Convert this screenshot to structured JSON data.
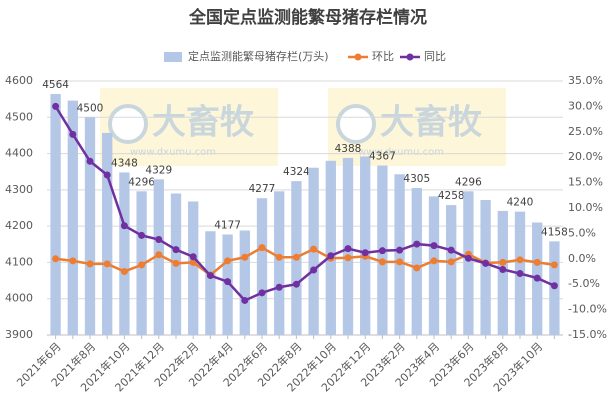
{
  "chart_data": {
    "type": "bar",
    "title": "全国定点监测能繁母猪存栏情况",
    "watermark": [
      "大畜牧",
      "www.dxumu.com"
    ],
    "categories": [
      "2021年6月",
      null,
      "2021年8月",
      null,
      "2021年10月",
      null,
      "2021年12月",
      null,
      "2022年2月",
      null,
      "2022年4月",
      null,
      "2022年6月",
      null,
      "2022年8月",
      null,
      "2022年10月",
      null,
      "2022年12月",
      null,
      "2023年2月",
      null,
      "2023年4月",
      null,
      "2023年6月",
      null,
      "2023年8月",
      null,
      "2023年10月",
      null
    ],
    "series": [
      {
        "name": "定点监测能繁母猪存栏(万头)",
        "type": "bar",
        "color": "#b4c7e7",
        "values": [
          4564,
          4546,
          4500,
          4457,
          4348,
          4296,
          4329,
          4290,
          4268,
          4186,
          4177,
          4188,
          4277,
          4296,
          4324,
          4361,
          4380,
          4388,
          4392,
          4367,
          4343,
          4305,
          4282,
          4258,
          4296,
          4272,
          4242,
          4240,
          4210,
          4158
        ],
        "value_labels": [
          "4564",
          null,
          "4500",
          null,
          "4348",
          "4296",
          "4329",
          null,
          null,
          null,
          "4177",
          null,
          "4277",
          null,
          "4324",
          null,
          null,
          "4388",
          null,
          "4367",
          null,
          "4305",
          null,
          "4258",
          "4296",
          null,
          null,
          "4240",
          null,
          "4158"
        ]
      },
      {
        "name": "环比",
        "type": "line",
        "axis": "y2",
        "color": "#ed7d31",
        "values": [
          0.0,
          -0.4,
          -1.0,
          -1.0,
          -2.5,
          -1.2,
          0.8,
          -0.9,
          -0.7,
          -3.2,
          -0.4,
          0.3,
          2.2,
          0.3,
          0.3,
          1.9,
          0.1,
          0.2,
          0.5,
          -0.6,
          -0.6,
          -1.8,
          -0.4,
          -0.6,
          0.9,
          -0.8,
          -0.7,
          -0.2,
          -0.7,
          -1.2
        ]
      },
      {
        "name": "同比",
        "type": "line",
        "axis": "y2",
        "color": "#7030a0",
        "values": [
          30.0,
          24.5,
          19.2,
          16.5,
          6.5,
          4.6,
          3.8,
          1.8,
          0.4,
          -3.3,
          -4.5,
          -8.2,
          -6.7,
          -5.6,
          -5.0,
          -2.2,
          0.6,
          2.0,
          1.2,
          1.6,
          1.7,
          2.9,
          2.6,
          1.7,
          0.1,
          -0.9,
          -2.1,
          -2.9,
          -3.8,
          -5.3
        ]
      }
    ],
    "ylim": [
      3900,
      4600
    ],
    "yticks": [
      3900,
      4000,
      4100,
      4200,
      4300,
      4400,
      4500,
      4600
    ],
    "y2lim": [
      -15,
      35
    ],
    "y2ticks": [
      {
        "value": -15,
        "label": "-15.0%"
      },
      {
        "value": -10,
        "label": "-10.0%"
      },
      {
        "value": -5,
        "label": "-5.0%"
      },
      {
        "value": 0,
        "label": "0.0%"
      },
      {
        "value": 5,
        "label": "5.0%"
      },
      {
        "value": 10,
        "label": "10.0%"
      },
      {
        "value": 15,
        "label": "15.0%"
      },
      {
        "value": 20,
        "label": "20.0%"
      },
      {
        "value": 25,
        "label": "25.0%"
      },
      {
        "value": 30,
        "label": "30.0%"
      },
      {
        "value": 35,
        "label": "35.0%"
      }
    ],
    "grid": true,
    "legend": "top"
  }
}
